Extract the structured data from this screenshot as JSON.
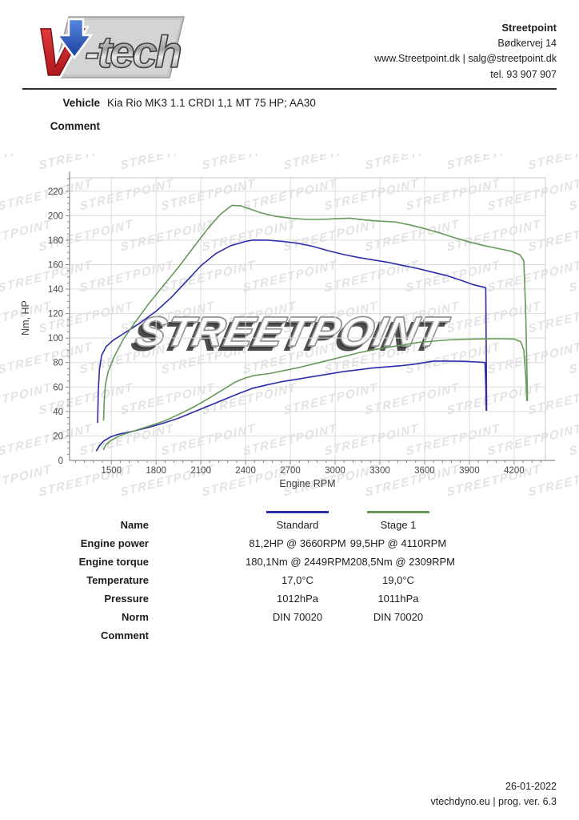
{
  "header": {
    "logo": {
      "v_text": "V",
      "tech_text": "-tech"
    },
    "company": {
      "name": "Streetpoint",
      "address": "Bødkervej 14",
      "web_email": "www.Streetpoint.dk | salg@streetpoint.dk",
      "phone": "tel. 93 907 907"
    }
  },
  "vehicle": {
    "label": "Vehicle",
    "value": "Kia Rio MK3 1.1 CRDI 1,1 MT 75 HP; AA30"
  },
  "comment": {
    "label": "Comment",
    "value": ""
  },
  "chart_data": {
    "type": "line",
    "title": "",
    "xlabel": "Engine RPM",
    "ylabel": "Nm, HP",
    "watermark": "STREETPOINT",
    "xlim": [
      1220,
      4410
    ],
    "ylim": [
      0,
      231
    ],
    "x_ticks": [
      1500,
      1800,
      2100,
      2400,
      2700,
      3000,
      3300,
      3600,
      3900,
      4200
    ],
    "y_ticks": [
      0,
      20,
      40,
      60,
      80,
      100,
      120,
      140,
      160,
      180,
      200,
      220
    ],
    "x_minor_step": 60,
    "y_minor_step": 5,
    "grid": true,
    "legend_position": "below",
    "series": [
      {
        "name": "Standard",
        "unit": "Nm",
        "color": "#2d2dab",
        "points": [
          [
            1408,
            31
          ],
          [
            1412,
            55
          ],
          [
            1420,
            74
          ],
          [
            1435,
            86
          ],
          [
            1465,
            93
          ],
          [
            1510,
            98
          ],
          [
            1600,
            105
          ],
          [
            1700,
            113
          ],
          [
            1800,
            122
          ],
          [
            1900,
            133
          ],
          [
            2000,
            146
          ],
          [
            2100,
            159
          ],
          [
            2200,
            169
          ],
          [
            2300,
            175.5
          ],
          [
            2400,
            179
          ],
          [
            2449,
            180.1
          ],
          [
            2550,
            180
          ],
          [
            2650,
            179
          ],
          [
            2750,
            177.5
          ],
          [
            2850,
            175
          ],
          [
            2950,
            171.5
          ],
          [
            3050,
            168.5
          ],
          [
            3150,
            166
          ],
          [
            3250,
            164
          ],
          [
            3350,
            162
          ],
          [
            3450,
            159.5
          ],
          [
            3550,
            157
          ],
          [
            3650,
            154
          ],
          [
            3750,
            151
          ],
          [
            3850,
            147
          ],
          [
            3930,
            143.5
          ],
          [
            4000,
            141.5
          ],
          [
            4010,
            141
          ],
          [
            4013,
            90
          ],
          [
            4016,
            41
          ]
        ]
      },
      {
        "name": "Standard",
        "unit": "HP",
        "color": "#2d2dab",
        "points": [
          [
            1400,
            8
          ],
          [
            1420,
            12
          ],
          [
            1450,
            16
          ],
          [
            1500,
            19.5
          ],
          [
            1550,
            21.5
          ],
          [
            1650,
            24
          ],
          [
            1750,
            27
          ],
          [
            1850,
            30.5
          ],
          [
            1950,
            34.5
          ],
          [
            2050,
            39.5
          ],
          [
            2150,
            44.5
          ],
          [
            2250,
            49.5
          ],
          [
            2350,
            54.5
          ],
          [
            2449,
            59
          ],
          [
            2550,
            62
          ],
          [
            2650,
            64.5
          ],
          [
            2750,
            66.5
          ],
          [
            2850,
            68.5
          ],
          [
            2950,
            70.5
          ],
          [
            3050,
            72.5
          ],
          [
            3150,
            74
          ],
          [
            3250,
            75.5
          ],
          [
            3350,
            76.5
          ],
          [
            3450,
            77.5
          ],
          [
            3550,
            79
          ],
          [
            3660,
            81.2
          ],
          [
            3760,
            81.2
          ],
          [
            3860,
            81
          ],
          [
            3950,
            80.5
          ],
          [
            4005,
            80
          ],
          [
            4010,
            62
          ],
          [
            4013,
            41
          ]
        ]
      },
      {
        "name": "Stage 1",
        "unit": "Nm",
        "color": "#67995a",
        "points": [
          [
            1448,
            33
          ],
          [
            1452,
            48
          ],
          [
            1460,
            62
          ],
          [
            1480,
            73
          ],
          [
            1520,
            85
          ],
          [
            1580,
            99
          ],
          [
            1660,
            113
          ],
          [
            1750,
            128
          ],
          [
            1850,
            143
          ],
          [
            1950,
            158
          ],
          [
            2050,
            174
          ],
          [
            2150,
            190
          ],
          [
            2230,
            201
          ],
          [
            2309,
            208.5
          ],
          [
            2370,
            208
          ],
          [
            2430,
            205.5
          ],
          [
            2500,
            202.5
          ],
          [
            2600,
            199.5
          ],
          [
            2700,
            198
          ],
          [
            2800,
            197
          ],
          [
            2900,
            197
          ],
          [
            3000,
            197.5
          ],
          [
            3100,
            198
          ],
          [
            3200,
            196.5
          ],
          [
            3300,
            195.5
          ],
          [
            3400,
            195
          ],
          [
            3500,
            192.5
          ],
          [
            3600,
            189.5
          ],
          [
            3700,
            186
          ],
          [
            3800,
            182
          ],
          [
            3900,
            178.5
          ],
          [
            4000,
            175.5
          ],
          [
            4100,
            173
          ],
          [
            4180,
            171
          ],
          [
            4240,
            168
          ],
          [
            4265,
            163
          ],
          [
            4278,
            120
          ],
          [
            4285,
            80
          ],
          [
            4290,
            49
          ]
        ]
      },
      {
        "name": "Stage 1",
        "unit": "HP",
        "color": "#67995a",
        "points": [
          [
            1448,
            9
          ],
          [
            1465,
            13
          ],
          [
            1500,
            16.5
          ],
          [
            1560,
            20.5
          ],
          [
            1650,
            24
          ],
          [
            1750,
            28
          ],
          [
            1850,
            32
          ],
          [
            1950,
            37.5
          ],
          [
            2050,
            43.5
          ],
          [
            2150,
            50.5
          ],
          [
            2250,
            58
          ],
          [
            2330,
            64
          ],
          [
            2400,
            67.5
          ],
          [
            2460,
            69.5
          ],
          [
            2560,
            71
          ],
          [
            2660,
            73.5
          ],
          [
            2760,
            76
          ],
          [
            2860,
            79
          ],
          [
            2960,
            82
          ],
          [
            3060,
            85
          ],
          [
            3160,
            88
          ],
          [
            3260,
            90.5
          ],
          [
            3360,
            92.5
          ],
          [
            3460,
            94.5
          ],
          [
            3560,
            96.5
          ],
          [
            3660,
            97.5
          ],
          [
            3760,
            98.5
          ],
          [
            3860,
            99
          ],
          [
            3960,
            99.3
          ],
          [
            4060,
            99.5
          ],
          [
            4110,
            99.5
          ],
          [
            4200,
            99.2
          ],
          [
            4245,
            97
          ],
          [
            4265,
            90
          ],
          [
            4280,
            65
          ],
          [
            4285,
            49
          ]
        ]
      }
    ]
  },
  "table": {
    "legend": {
      "standard_color": "#2d2dab",
      "stage1_color": "#67995a"
    },
    "rows": [
      {
        "label": "Name",
        "standard": "Standard",
        "stage1": "Stage 1"
      },
      {
        "label": "Engine power",
        "standard": "81,2HP @ 3660RPM",
        "stage1": "99,5HP @ 4110RPM"
      },
      {
        "label": "Engine torque",
        "standard": "180,1Nm @ 2449RPM",
        "stage1": "208,5Nm @ 2309RPM"
      },
      {
        "label": "Temperature",
        "standard": "17,0°C",
        "stage1": "19,0°C"
      },
      {
        "label": "Pressure",
        "standard": "1012hPa",
        "stage1": "1011hPa"
      },
      {
        "label": "Norm",
        "standard": "DIN 70020",
        "stage1": "DIN 70020"
      },
      {
        "label": "Comment",
        "standard": "",
        "stage1": ""
      }
    ]
  },
  "footer": {
    "date": "26-01-2022",
    "program": "vtechdyno.eu | prog. ver. 6.3"
  }
}
